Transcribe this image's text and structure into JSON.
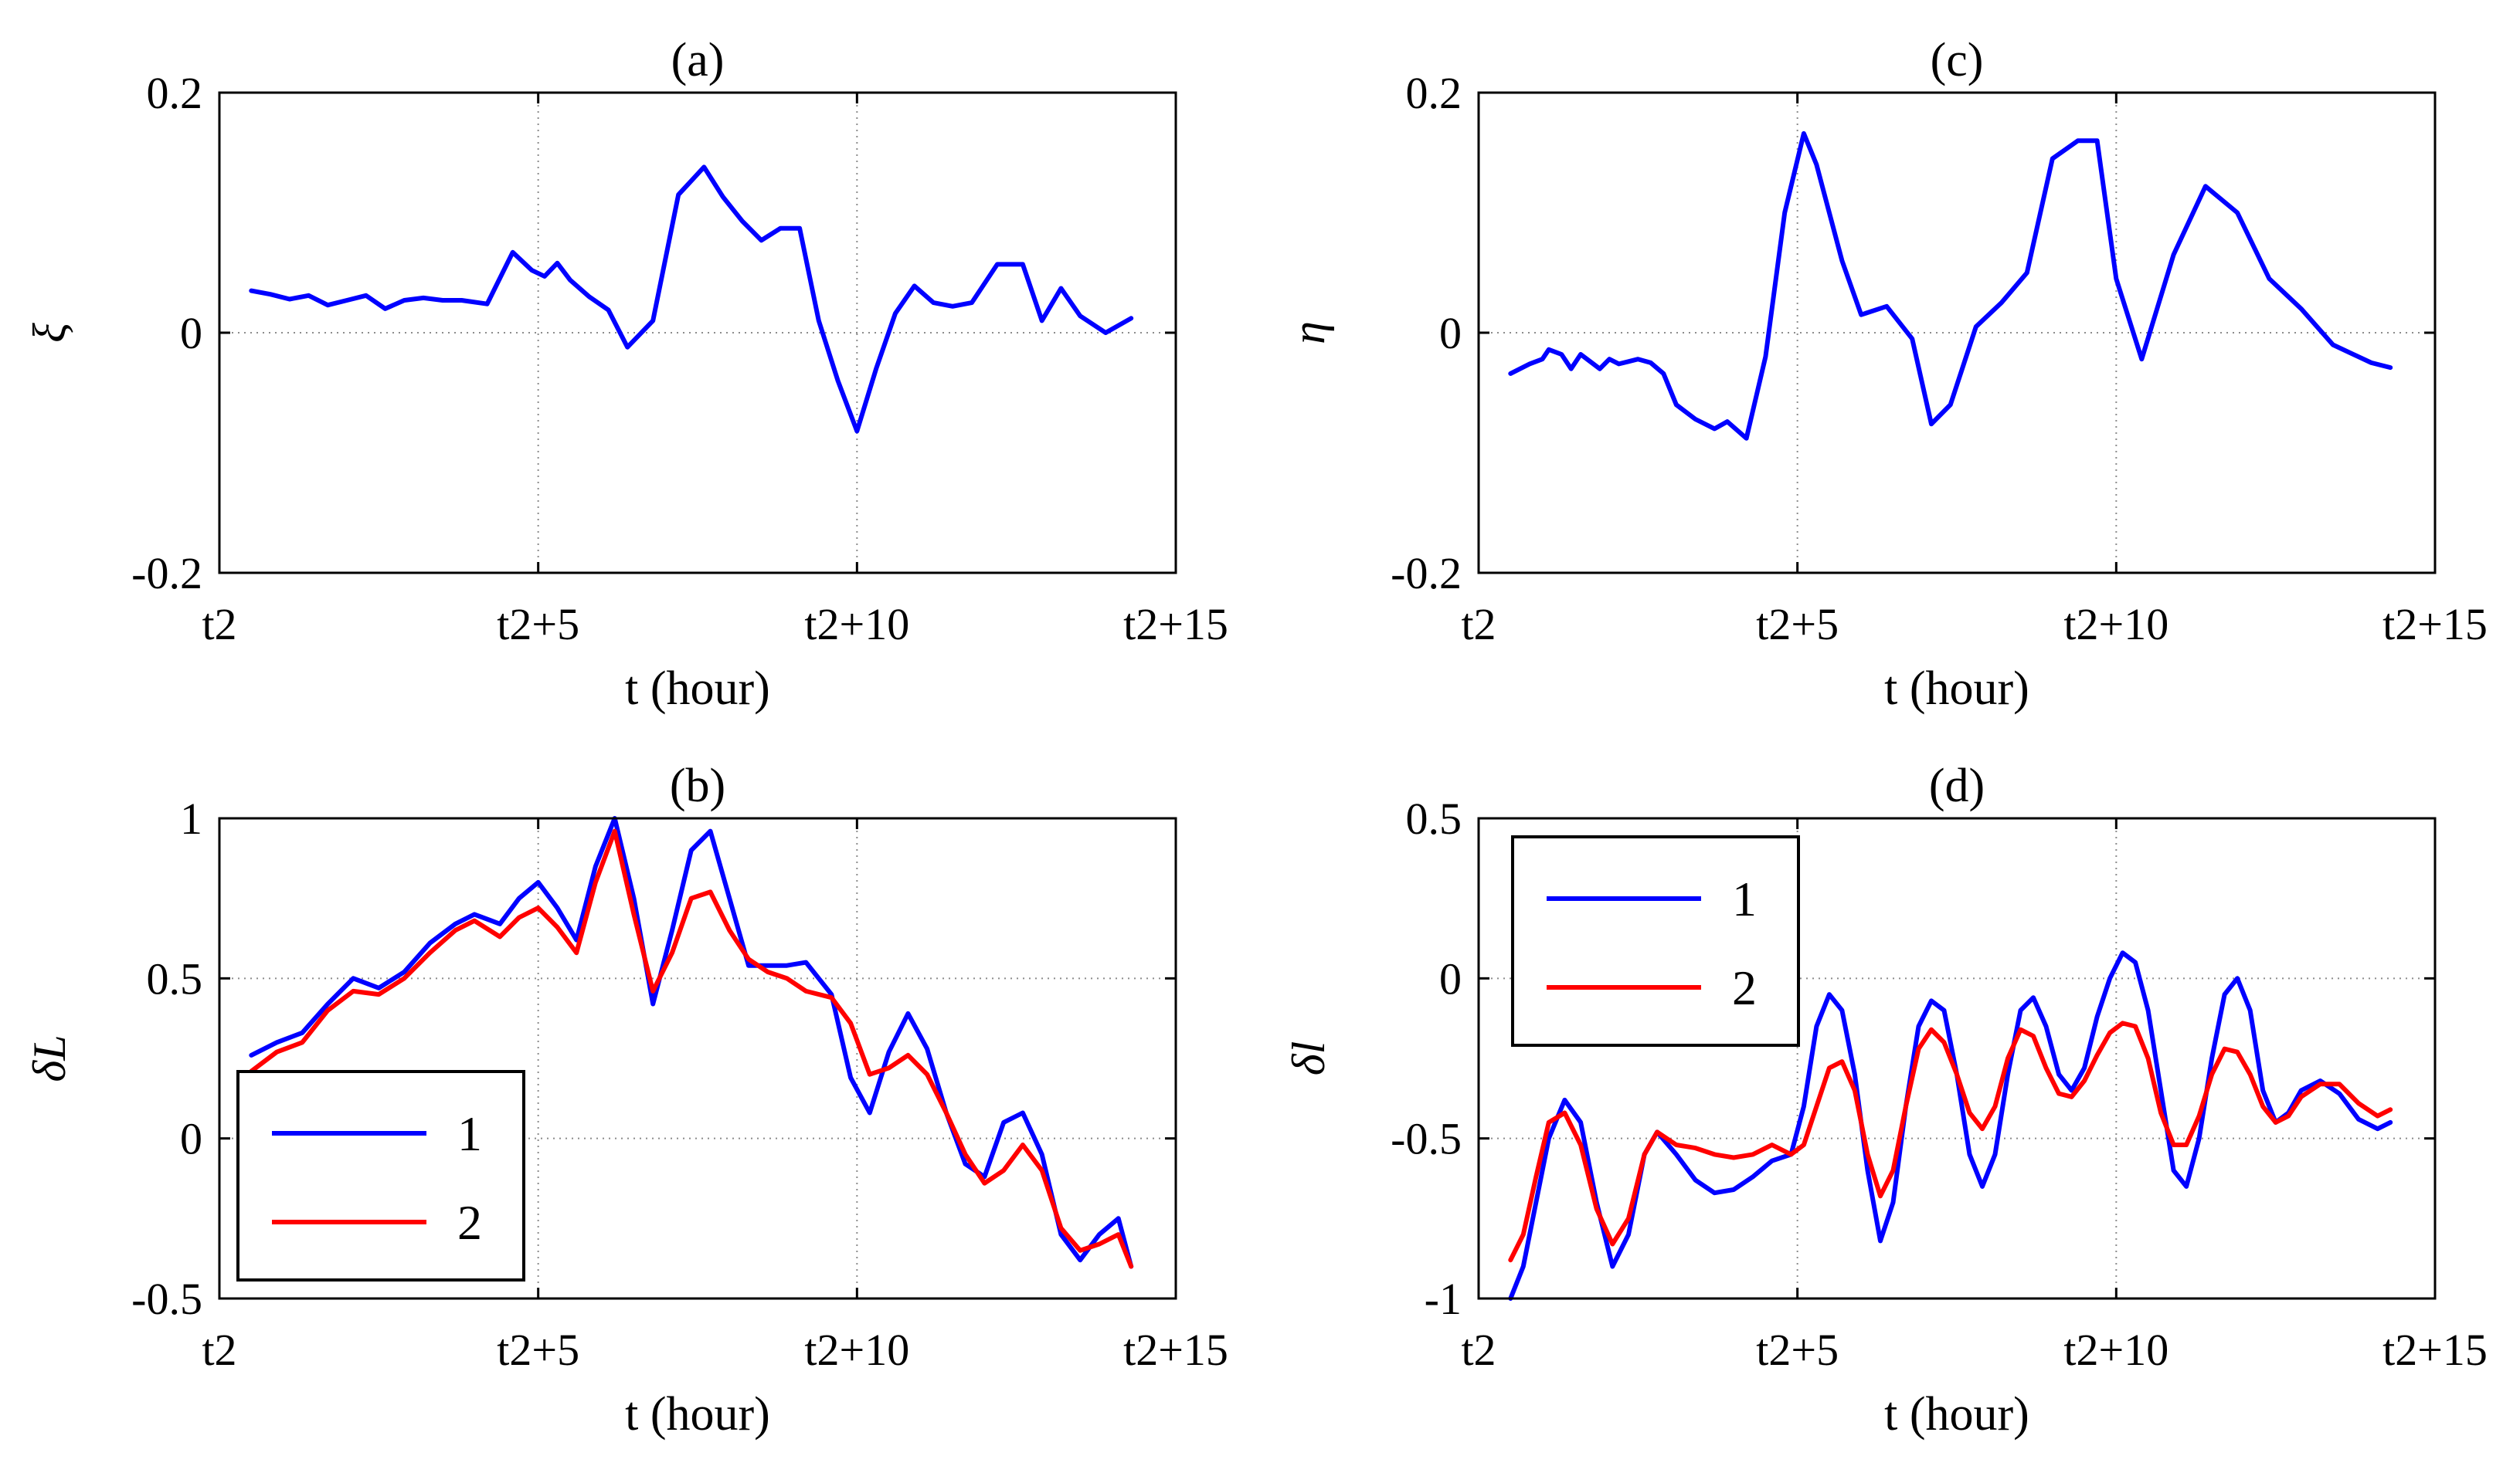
{
  "colors": {
    "series_1": "#0000ff",
    "series_2": "#ff0000",
    "grid": "#8c8c8c",
    "axis": "#000000"
  },
  "chart_data": [
    {
      "id": "a",
      "type": "line",
      "title": "(a)",
      "xlabel": "t (hour)",
      "ylabel": "ξ",
      "xlim": [
        0,
        15
      ],
      "ylim": [
        -0.2,
        0.2
      ],
      "xticks": [
        0,
        5,
        10,
        15
      ],
      "xticklabels": [
        "t2",
        "t2+5",
        "t2+10",
        "t2+15"
      ],
      "yticks": [
        -0.2,
        0,
        0.2
      ],
      "yticklabels": [
        "-0.2",
        "0",
        "0.2"
      ],
      "grid": true,
      "legend": null,
      "series": [
        {
          "name": "1",
          "color": "#0000ff",
          "x": [
            0.5,
            0.8,
            1.1,
            1.4,
            1.7,
            2.0,
            2.3,
            2.6,
            2.9,
            3.2,
            3.5,
            3.8,
            4.2,
            4.6,
            4.9,
            5.1,
            5.3,
            5.5,
            5.8,
            6.1,
            6.4,
            6.8,
            7.2,
            7.6,
            7.9,
            8.2,
            8.5,
            8.8,
            9.1,
            9.4,
            9.7,
            10.0,
            10.3,
            10.6,
            10.9,
            11.2,
            11.5,
            11.8,
            12.2,
            12.6,
            12.9,
            13.2,
            13.5,
            13.9,
            14.3
          ],
          "y": [
            0.035,
            0.032,
            0.028,
            0.031,
            0.023,
            0.027,
            0.031,
            0.02,
            0.027,
            0.029,
            0.027,
            0.027,
            0.024,
            0.067,
            0.052,
            0.047,
            0.058,
            0.044,
            0.03,
            0.019,
            -0.012,
            0.01,
            0.115,
            0.138,
            0.113,
            0.093,
            0.077,
            0.087,
            0.087,
            0.01,
            -0.04,
            -0.082,
            -0.03,
            0.016,
            0.039,
            0.025,
            0.022,
            0.025,
            0.057,
            0.057,
            0.01,
            0.037,
            0.014,
            0.0,
            0.012
          ]
        }
      ]
    },
    {
      "id": "b",
      "type": "line",
      "title": "(b)",
      "xlabel": "t (hour)",
      "ylabel": "δL",
      "xlim": [
        0,
        15
      ],
      "ylim": [
        -0.5,
        1
      ],
      "xticks": [
        0,
        5,
        10,
        15
      ],
      "xticklabels": [
        "t2",
        "t2+5",
        "t2+10",
        "t2+15"
      ],
      "yticks": [
        -0.5,
        0,
        0.5,
        1
      ],
      "yticklabels": [
        "-0.5",
        "0",
        "0.5",
        "1"
      ],
      "grid": true,
      "legend": {
        "location": "lower-left",
        "entries": [
          "1",
          "2"
        ]
      },
      "series": [
        {
          "name": "1",
          "color": "#0000ff",
          "x": [
            0.5,
            0.9,
            1.3,
            1.7,
            2.1,
            2.5,
            2.9,
            3.3,
            3.7,
            4.0,
            4.4,
            4.7,
            5.0,
            5.3,
            5.6,
            5.9,
            6.2,
            6.5,
            6.8,
            7.1,
            7.4,
            7.7,
            8.0,
            8.3,
            8.6,
            8.9,
            9.2,
            9.6,
            9.9,
            10.2,
            10.5,
            10.8,
            11.1,
            11.4,
            11.7,
            12.0,
            12.3,
            12.6,
            12.9,
            13.2,
            13.5,
            13.8,
            14.1,
            14.3
          ],
          "y": [
            0.26,
            0.3,
            0.33,
            0.42,
            0.5,
            0.47,
            0.52,
            0.61,
            0.67,
            0.7,
            0.67,
            0.75,
            0.8,
            0.72,
            0.62,
            0.85,
            1.0,
            0.75,
            0.42,
            0.65,
            0.9,
            0.96,
            0.75,
            0.54,
            0.54,
            0.54,
            0.55,
            0.45,
            0.19,
            0.08,
            0.27,
            0.39,
            0.28,
            0.08,
            -0.08,
            -0.12,
            0.05,
            0.08,
            -0.05,
            -0.3,
            -0.38,
            -0.3,
            -0.25,
            -0.4
          ]
        },
        {
          "name": "2",
          "color": "#ff0000",
          "x": [
            0.5,
            0.9,
            1.3,
            1.7,
            2.1,
            2.5,
            2.9,
            3.3,
            3.7,
            4.0,
            4.4,
            4.7,
            5.0,
            5.3,
            5.6,
            5.9,
            6.2,
            6.5,
            6.8,
            7.1,
            7.4,
            7.7,
            8.0,
            8.3,
            8.6,
            8.9,
            9.2,
            9.6,
            9.9,
            10.2,
            10.5,
            10.8,
            11.1,
            11.4,
            11.7,
            12.0,
            12.3,
            12.6,
            12.9,
            13.2,
            13.5,
            13.8,
            14.1,
            14.3
          ],
          "y": [
            0.21,
            0.27,
            0.3,
            0.4,
            0.46,
            0.45,
            0.5,
            0.58,
            0.65,
            0.68,
            0.63,
            0.69,
            0.72,
            0.66,
            0.58,
            0.8,
            0.96,
            0.7,
            0.46,
            0.58,
            0.75,
            0.77,
            0.65,
            0.56,
            0.52,
            0.5,
            0.46,
            0.44,
            0.36,
            0.2,
            0.22,
            0.26,
            0.2,
            0.08,
            -0.05,
            -0.14,
            -0.1,
            -0.02,
            -0.1,
            -0.28,
            -0.35,
            -0.33,
            -0.3,
            -0.4
          ]
        }
      ]
    },
    {
      "id": "c",
      "type": "line",
      "title": "(c)",
      "xlabel": "t (hour)",
      "ylabel": "η",
      "xlim": [
        0,
        15
      ],
      "ylim": [
        -0.2,
        0.2
      ],
      "xticks": [
        0,
        5,
        10,
        15
      ],
      "xticklabels": [
        "t2",
        "t2+5",
        "t2+10",
        "t2+15"
      ],
      "yticks": [
        -0.2,
        0,
        0.2
      ],
      "yticklabels": [
        "-0.2",
        "0",
        "0.2"
      ],
      "grid": true,
      "legend": null,
      "series": [
        {
          "name": "1",
          "color": "#0000ff",
          "x": [
            0.5,
            0.8,
            1.0,
            1.1,
            1.3,
            1.45,
            1.6,
            1.75,
            1.9,
            2.05,
            2.2,
            2.35,
            2.5,
            2.7,
            2.9,
            3.1,
            3.4,
            3.7,
            3.9,
            4.2,
            4.5,
            4.8,
            5.1,
            5.3,
            5.7,
            6.0,
            6.4,
            6.8,
            7.1,
            7.4,
            7.8,
            8.2,
            8.6,
            9.0,
            9.4,
            9.7,
            10.0,
            10.4,
            10.9,
            11.4,
            11.9,
            12.4,
            12.9,
            13.4,
            14.0,
            14.3
          ],
          "y": [
            -0.034,
            -0.026,
            -0.022,
            -0.014,
            -0.018,
            -0.03,
            -0.018,
            -0.024,
            -0.03,
            -0.022,
            -0.026,
            -0.024,
            -0.022,
            -0.025,
            -0.034,
            -0.06,
            -0.072,
            -0.08,
            -0.074,
            -0.088,
            -0.02,
            0.1,
            0.166,
            0.14,
            0.06,
            0.015,
            0.022,
            -0.005,
            -0.076,
            -0.06,
            0.005,
            0.025,
            0.05,
            0.145,
            0.16,
            0.16,
            0.045,
            -0.022,
            0.065,
            0.122,
            0.1,
            0.045,
            0.02,
            -0.01,
            -0.025,
            -0.029
          ]
        }
      ]
    },
    {
      "id": "d",
      "type": "line",
      "title": "(d)",
      "xlabel": "t (hour)",
      "ylabel": "δl",
      "xlim": [
        0,
        15
      ],
      "ylim": [
        -1,
        0.5
      ],
      "xticks": [
        0,
        5,
        10,
        15
      ],
      "xticklabels": [
        "t2",
        "t2+5",
        "t2+10",
        "t2+15"
      ],
      "yticks": [
        -1,
        -0.5,
        0,
        0.5
      ],
      "yticklabels": [
        "-1",
        "-0.5",
        "0",
        "0.5"
      ],
      "grid": true,
      "legend": {
        "location": "upper-left",
        "entries": [
          "1",
          "2"
        ]
      },
      "series": [
        {
          "name": "1",
          "color": "#0000ff",
          "x": [
            0.5,
            0.7,
            0.9,
            1.1,
            1.35,
            1.6,
            1.85,
            2.1,
            2.35,
            2.6,
            2.8,
            3.1,
            3.4,
            3.7,
            4.0,
            4.3,
            4.6,
            4.9,
            5.1,
            5.3,
            5.5,
            5.7,
            5.9,
            6.1,
            6.3,
            6.5,
            6.7,
            6.9,
            7.1,
            7.3,
            7.5,
            7.7,
            7.9,
            8.1,
            8.3,
            8.5,
            8.7,
            8.9,
            9.1,
            9.3,
            9.5,
            9.7,
            9.9,
            10.1,
            10.3,
            10.5,
            10.7,
            10.9,
            11.1,
            11.3,
            11.5,
            11.7,
            11.9,
            12.1,
            12.3,
            12.5,
            12.7,
            12.9,
            13.2,
            13.5,
            13.8,
            14.1,
            14.3
          ],
          "y": [
            -1.0,
            -0.9,
            -0.7,
            -0.5,
            -0.38,
            -0.45,
            -0.7,
            -0.9,
            -0.8,
            -0.55,
            -0.48,
            -0.55,
            -0.63,
            -0.67,
            -0.66,
            -0.62,
            -0.57,
            -0.55,
            -0.4,
            -0.15,
            -0.05,
            -0.1,
            -0.3,
            -0.6,
            -0.82,
            -0.7,
            -0.4,
            -0.15,
            -0.07,
            -0.1,
            -0.3,
            -0.55,
            -0.65,
            -0.55,
            -0.3,
            -0.1,
            -0.06,
            -0.15,
            -0.3,
            -0.35,
            -0.28,
            -0.12,
            0.0,
            0.08,
            0.05,
            -0.1,
            -0.35,
            -0.6,
            -0.65,
            -0.5,
            -0.25,
            -0.05,
            0.0,
            -0.1,
            -0.35,
            -0.45,
            -0.42,
            -0.35,
            -0.32,
            -0.36,
            -0.44,
            -0.47,
            -0.45
          ]
        },
        {
          "name": "2",
          "color": "#ff0000",
          "x": [
            0.5,
            0.7,
            0.9,
            1.1,
            1.35,
            1.6,
            1.85,
            2.1,
            2.35,
            2.6,
            2.8,
            3.1,
            3.4,
            3.7,
            4.0,
            4.3,
            4.6,
            4.9,
            5.1,
            5.3,
            5.5,
            5.7,
            5.9,
            6.1,
            6.3,
            6.5,
            6.7,
            6.9,
            7.1,
            7.3,
            7.5,
            7.7,
            7.9,
            8.1,
            8.3,
            8.5,
            8.7,
            8.9,
            9.1,
            9.3,
            9.5,
            9.7,
            9.9,
            10.1,
            10.3,
            10.5,
            10.7,
            10.9,
            11.1,
            11.3,
            11.5,
            11.7,
            11.9,
            12.1,
            12.3,
            12.5,
            12.7,
            12.9,
            13.2,
            13.5,
            13.8,
            14.1,
            14.3
          ],
          "y": [
            -0.88,
            -0.8,
            -0.62,
            -0.45,
            -0.42,
            -0.52,
            -0.72,
            -0.83,
            -0.75,
            -0.55,
            -0.48,
            -0.52,
            -0.53,
            -0.55,
            -0.56,
            -0.55,
            -0.52,
            -0.55,
            -0.52,
            -0.4,
            -0.28,
            -0.26,
            -0.35,
            -0.55,
            -0.68,
            -0.6,
            -0.4,
            -0.22,
            -0.16,
            -0.2,
            -0.3,
            -0.42,
            -0.47,
            -0.4,
            -0.25,
            -0.16,
            -0.18,
            -0.28,
            -0.36,
            -0.37,
            -0.32,
            -0.24,
            -0.17,
            -0.14,
            -0.15,
            -0.25,
            -0.42,
            -0.52,
            -0.52,
            -0.43,
            -0.3,
            -0.22,
            -0.23,
            -0.3,
            -0.4,
            -0.45,
            -0.43,
            -0.37,
            -0.33,
            -0.33,
            -0.39,
            -0.43,
            -0.41
          ]
        }
      ]
    }
  ]
}
